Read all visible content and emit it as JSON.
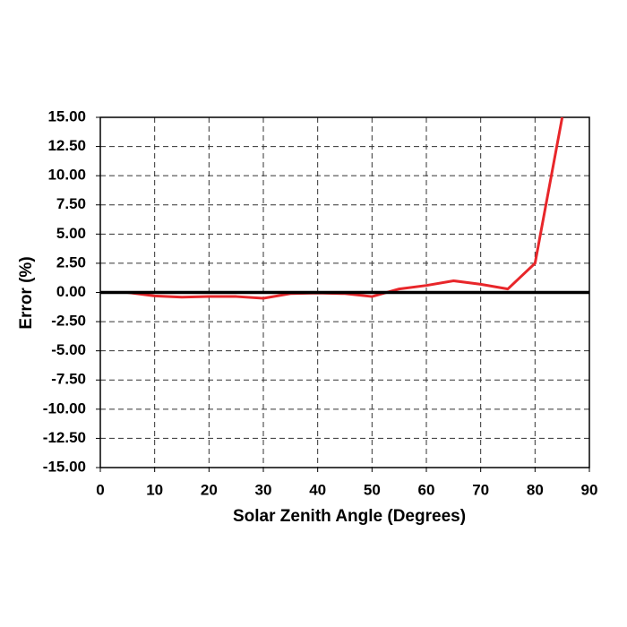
{
  "chart_data": {
    "type": "line",
    "x_label": "Solar Zenith Angle (Degrees)",
    "y_label": "Error (%)",
    "x": [
      0,
      5,
      10,
      15,
      20,
      25,
      30,
      35,
      40,
      45,
      50,
      55,
      60,
      65,
      70,
      75,
      80,
      85
    ],
    "series": [
      {
        "color": "#e8262a",
        "values": [
          0,
          0,
          -0.3,
          -0.4,
          -0.35,
          -0.35,
          -0.5,
          -0.1,
          -0.05,
          -0.1,
          -0.35,
          0.3,
          0.6,
          1.0,
          0.7,
          0.3,
          2.5,
          15
        ]
      }
    ],
    "xlim": [
      0,
      90
    ],
    "xticks": [
      0,
      10,
      20,
      30,
      40,
      50,
      60,
      70,
      80,
      90
    ],
    "ylim": [
      -15,
      15
    ],
    "yticks": [
      {
        "value": -15,
        "label": "-15.00"
      },
      {
        "value": -12.5,
        "label": "-12.50"
      },
      {
        "value": -10,
        "label": "-10.00"
      },
      {
        "value": -7.5,
        "label": "-7.50"
      },
      {
        "value": -5,
        "label": "-5.00"
      },
      {
        "value": -2.5,
        "label": "-2.50"
      },
      {
        "value": 0,
        "label": "0.00"
      },
      {
        "value": 2.5,
        "label": "2.50"
      },
      {
        "value": 5,
        "label": "5.00"
      },
      {
        "value": 7.5,
        "label": "7.50"
      },
      {
        "value": 10,
        "label": "10.00"
      },
      {
        "value": 12.5,
        "label": "12.50"
      },
      {
        "value": 15,
        "label": "15.00"
      }
    ],
    "grid": true,
    "reference_line": {
      "y": 0,
      "color": "#000000"
    }
  }
}
